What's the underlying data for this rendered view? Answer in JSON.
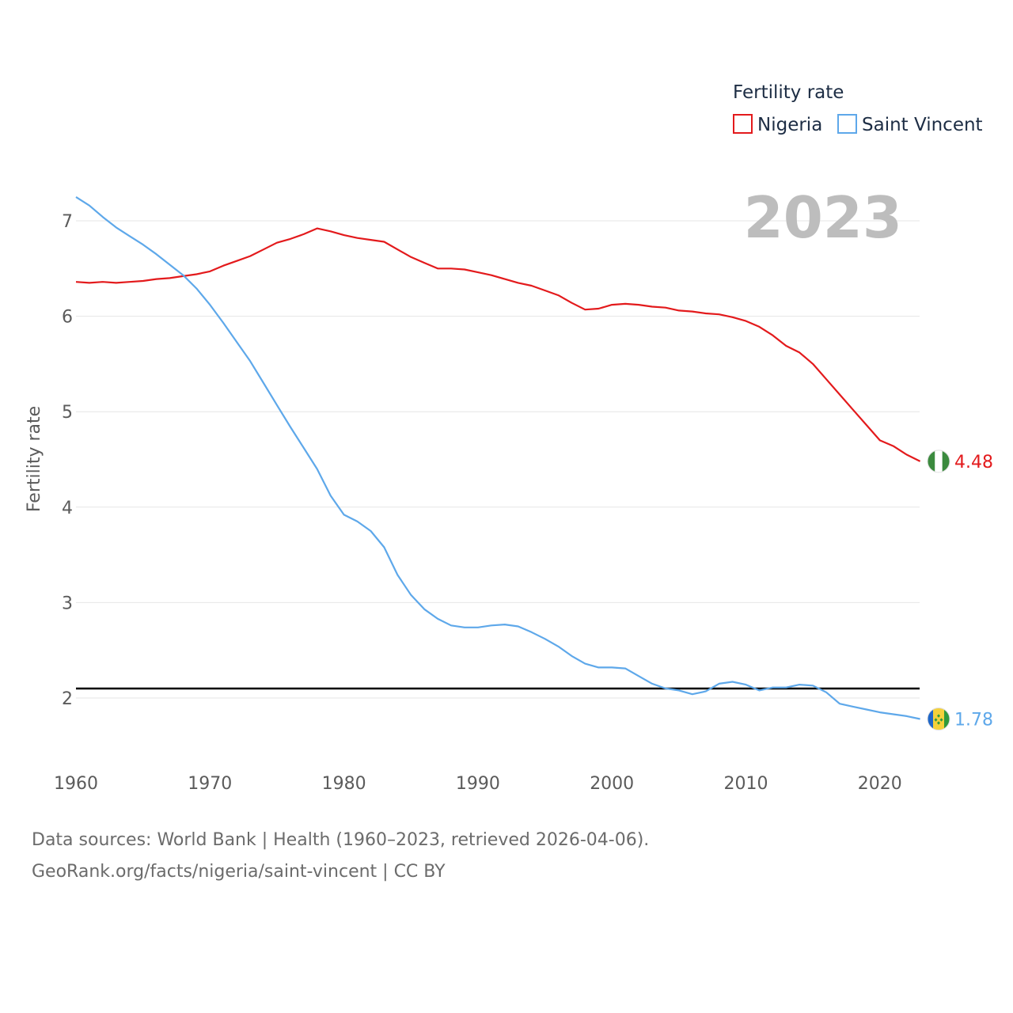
{
  "chart_data": {
    "type": "line",
    "legend_title": "Fertility rate",
    "ylabel": "Fertility rate",
    "year_display": "2023",
    "xlim": [
      1960,
      2023
    ],
    "ylim": [
      1.5,
      7.5
    ],
    "xticks": [
      1960,
      1970,
      1980,
      1990,
      2000,
      2010,
      2020
    ],
    "yticks": [
      2,
      3,
      4,
      5,
      6,
      7
    ],
    "reference_line": 2.1,
    "x": [
      1960,
      1961,
      1962,
      1963,
      1964,
      1965,
      1966,
      1967,
      1968,
      1969,
      1970,
      1971,
      1972,
      1973,
      1974,
      1975,
      1976,
      1977,
      1978,
      1979,
      1980,
      1981,
      1982,
      1983,
      1984,
      1985,
      1986,
      1987,
      1988,
      1989,
      1990,
      1991,
      1992,
      1993,
      1994,
      1995,
      1996,
      1997,
      1998,
      1999,
      2000,
      2001,
      2002,
      2003,
      2004,
      2005,
      2006,
      2007,
      2008,
      2009,
      2010,
      2011,
      2012,
      2013,
      2014,
      2015,
      2016,
      2017,
      2018,
      2019,
      2020,
      2021,
      2022,
      2023
    ],
    "series": [
      {
        "name": "Nigeria",
        "color": "#e31a1c",
        "end_label": "4.48",
        "flag": "nigeria-flag",
        "values": [
          6.36,
          6.35,
          6.36,
          6.35,
          6.36,
          6.37,
          6.39,
          6.4,
          6.42,
          6.44,
          6.47,
          6.53,
          6.58,
          6.63,
          6.7,
          6.77,
          6.81,
          6.86,
          6.92,
          6.89,
          6.85,
          6.82,
          6.8,
          6.78,
          6.7,
          6.62,
          6.56,
          6.5,
          6.5,
          6.49,
          6.46,
          6.43,
          6.39,
          6.35,
          6.32,
          6.27,
          6.22,
          6.14,
          6.07,
          6.08,
          6.12,
          6.13,
          6.12,
          6.1,
          6.09,
          6.06,
          6.05,
          6.03,
          6.02,
          5.99,
          5.95,
          5.89,
          5.8,
          5.69,
          5.62,
          5.5,
          5.34,
          5.18,
          5.02,
          4.86,
          4.7,
          4.64,
          4.55,
          4.48
        ]
      },
      {
        "name": "Saint Vincent",
        "color": "#5ea8ea",
        "end_label": "1.78",
        "flag": "saint-vincent-flag",
        "values": [
          7.25,
          7.16,
          7.04,
          6.93,
          6.84,
          6.75,
          6.65,
          6.54,
          6.43,
          6.29,
          6.12,
          5.93,
          5.73,
          5.53,
          5.3,
          5.07,
          4.84,
          4.62,
          4.4,
          4.12,
          3.92,
          3.85,
          3.75,
          3.58,
          3.29,
          3.08,
          2.93,
          2.83,
          2.76,
          2.74,
          2.74,
          2.76,
          2.77,
          2.75,
          2.69,
          2.62,
          2.54,
          2.44,
          2.36,
          2.32,
          2.32,
          2.31,
          2.23,
          2.15,
          2.1,
          2.08,
          2.04,
          2.07,
          2.15,
          2.17,
          2.14,
          2.08,
          2.11,
          2.11,
          2.14,
          2.13,
          2.06,
          1.94,
          1.91,
          1.88,
          1.85,
          1.83,
          1.81,
          1.78
        ]
      }
    ]
  },
  "footer": {
    "line1": "Data sources: World Bank | Health (1960–2023, retrieved 2026-04-06).",
    "line2": "GeoRank.org/facts/nigeria/saint-vincent | CC BY"
  }
}
